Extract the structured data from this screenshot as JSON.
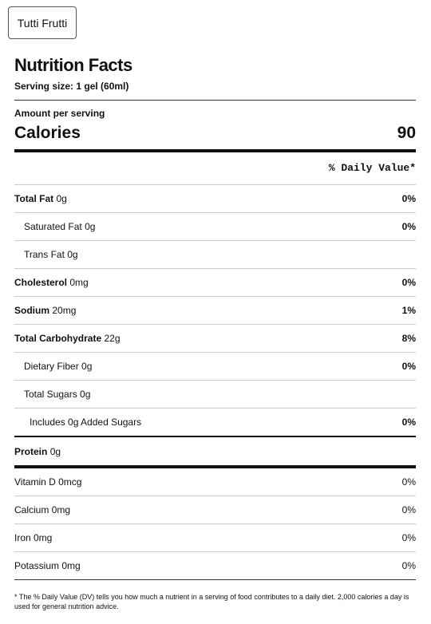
{
  "flavor_button": {
    "label": "Tutti Frutti"
  },
  "panel": {
    "title": "Nutrition Facts",
    "serving_size": "Serving size: 1 gel (60ml)",
    "amount_per_serving": "Amount per serving",
    "calories_label": "Calories",
    "calories_value": "90",
    "daily_value_header": "% Daily Value*",
    "nutrients": [
      {
        "name": "Total Fat",
        "amount": "0g",
        "pct": "0%"
      },
      {
        "name": "Saturated Fat",
        "amount": "0g",
        "pct": "0%"
      },
      {
        "name": "Trans Fat",
        "amount": "0g",
        "pct": ""
      },
      {
        "name": "Cholesterol",
        "amount": "0mg",
        "pct": "0%"
      },
      {
        "name": "Sodium",
        "amount": "20mg",
        "pct": "1%"
      },
      {
        "name": "Total Carbohydrate",
        "amount": "22g",
        "pct": "8%"
      },
      {
        "name": "Dietary Fiber",
        "amount": "0g",
        "pct": "0%"
      },
      {
        "name": "Total Sugars",
        "amount": "0g",
        "pct": ""
      },
      {
        "name": "Includes 0g Added Sugars",
        "amount": "",
        "pct": "0%"
      }
    ],
    "protein": {
      "name": "Protein",
      "amount": "0g"
    },
    "vitamins": [
      {
        "label": "Vitamin D 0mcg",
        "pct": "0%"
      },
      {
        "label": "Calcium 0mg",
        "pct": "0%"
      },
      {
        "label": "Iron 0mg",
        "pct": "0%"
      },
      {
        "label": "Potassium 0mg",
        "pct": "0%"
      }
    ],
    "footnote": "* The % Daily Value (DV) tells you how much a nutrient in a serving of food contributes to a daily diet. 2,000 calories a day is used for general nutrition advice."
  }
}
